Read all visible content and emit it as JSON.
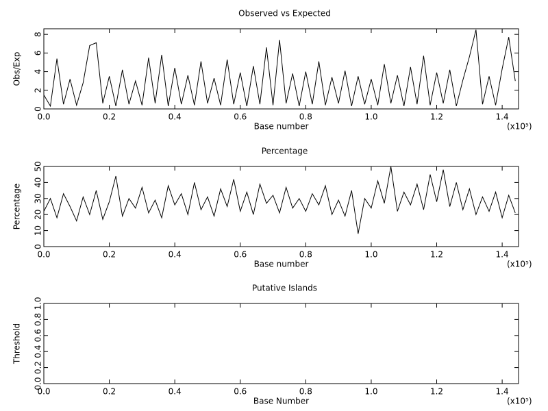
{
  "chart_data": [
    {
      "type": "line",
      "title": "Observed vs Expected",
      "x_label": "Base number",
      "y_label": "Obs/Exp",
      "x_multiplier": "(x10⁵)",
      "xlim": [
        0,
        1.45
      ],
      "xticks": [
        {
          "value": 0,
          "label": "0.0"
        },
        0.2,
        0.4,
        0.6,
        0.8,
        {
          "value": 1,
          "label": "1.0"
        },
        1.2,
        1.4
      ],
      "ylim": [
        0,
        8.6
      ],
      "yticks": [
        0,
        2,
        4,
        6,
        8
      ],
      "x": [
        0,
        0.02,
        0.04,
        0.06,
        0.08,
        0.1,
        0.12,
        0.14,
        0.16,
        0.18,
        0.2,
        0.22,
        0.24,
        0.26,
        0.28,
        0.3,
        0.32,
        0.34,
        0.36,
        0.38,
        0.4,
        0.42,
        0.44,
        0.46,
        0.48,
        0.5,
        0.52,
        0.54,
        0.56,
        0.58,
        0.6,
        0.62,
        0.64,
        0.66,
        0.68,
        0.7,
        0.72,
        0.74,
        0.76,
        0.78,
        0.8,
        0.82,
        0.84,
        0.86,
        0.88,
        0.9,
        0.92,
        0.94,
        0.96,
        0.98,
        1,
        1.02,
        1.04,
        1.06,
        1.08,
        1.1,
        1.12,
        1.14,
        1.16,
        1.18,
        1.2,
        1.22,
        1.24,
        1.26,
        1.28,
        1.3,
        1.32,
        1.34,
        1.36,
        1.38,
        1.4,
        1.42,
        1.44
      ],
      "series": [
        {
          "color": "#000000",
          "values": [
            1.5,
            0.3,
            5.4,
            0.5,
            3.2,
            0.4,
            2.8,
            6.8,
            7.1,
            0.6,
            3.5,
            0.3,
            4.2,
            0.5,
            3.0,
            0.4,
            5.5,
            0.6,
            5.8,
            0.3,
            4.4,
            0.5,
            3.6,
            0.4,
            5.1,
            0.6,
            3.3,
            0.4,
            5.3,
            0.5,
            3.9,
            0.3,
            4.6,
            0.5,
            6.6,
            0.4,
            7.4,
            0.6,
            3.8,
            0.3,
            4.0,
            0.5,
            5.1,
            0.4,
            3.4,
            0.6,
            4.1,
            0.3,
            3.5,
            0.5,
            3.2,
            0.4,
            4.8,
            0.6,
            3.6,
            0.3,
            4.5,
            0.5,
            5.7,
            0.4,
            3.9,
            0.6,
            4.2,
            0.3,
            3.1,
            5.6,
            8.5,
            0.5,
            3.5,
            0.4,
            4.3,
            7.7,
            3.0
          ]
        }
      ]
    },
    {
      "type": "line",
      "title": "Percentage",
      "x_label": "Base number",
      "y_label": "Percentage",
      "x_multiplier": "(x10⁵)",
      "xlim": [
        0,
        1.45
      ],
      "xticks": [
        {
          "value": 0,
          "label": "0.0"
        },
        0.2,
        0.4,
        0.6,
        0.8,
        {
          "value": 1,
          "label": "1.0"
        },
        1.2,
        1.4
      ],
      "ylim": [
        0,
        50
      ],
      "yticks": [
        0,
        10,
        20,
        30,
        40,
        50
      ],
      "x": [
        0,
        0.02,
        0.04,
        0.06,
        0.08,
        0.1,
        0.12,
        0.14,
        0.16,
        0.18,
        0.2,
        0.22,
        0.24,
        0.26,
        0.28,
        0.3,
        0.32,
        0.34,
        0.36,
        0.38,
        0.4,
        0.42,
        0.44,
        0.46,
        0.48,
        0.5,
        0.52,
        0.54,
        0.56,
        0.58,
        0.6,
        0.62,
        0.64,
        0.66,
        0.68,
        0.7,
        0.72,
        0.74,
        0.76,
        0.78,
        0.8,
        0.82,
        0.84,
        0.86,
        0.88,
        0.9,
        0.92,
        0.94,
        0.96,
        0.98,
        1,
        1.02,
        1.04,
        1.06,
        1.08,
        1.1,
        1.12,
        1.14,
        1.16,
        1.18,
        1.2,
        1.22,
        1.24,
        1.26,
        1.28,
        1.3,
        1.32,
        1.34,
        1.36,
        1.38,
        1.4,
        1.42,
        1.44
      ],
      "series": [
        {
          "color": "#000000",
          "values": [
            22,
            30,
            18,
            33,
            25,
            16,
            31,
            20,
            35,
            17,
            28,
            44,
            19,
            30,
            24,
            37,
            21,
            29,
            18,
            38,
            26,
            33,
            20,
            40,
            23,
            31,
            19,
            36,
            25,
            42,
            22,
            34,
            20,
            39,
            27,
            32,
            21,
            37,
            24,
            30,
            22,
            33,
            26,
            38,
            20,
            29,
            19,
            35,
            8,
            30,
            24,
            41,
            27,
            50,
            22,
            34,
            26,
            39,
            23,
            45,
            28,
            48,
            25,
            40,
            23,
            36,
            20,
            31,
            22,
            34,
            18,
            32,
            21
          ]
        }
      ]
    },
    {
      "type": "line",
      "title": "Putative Islands",
      "x_label": "Base Number",
      "y_label": "Threshold",
      "x_multiplier": "(x10⁵)",
      "xlim": [
        0,
        1.45
      ],
      "xticks": [
        {
          "value": 0,
          "label": "0.0"
        },
        0.2,
        0.4,
        0.6,
        0.8,
        {
          "value": 1,
          "label": "1.0"
        },
        1.2,
        1.4
      ],
      "ylim": [
        0,
        1
      ],
      "yticks": [
        {
          "value": 0,
          "label": "0.0"
        },
        0.2,
        0.4,
        0.6,
        0.8,
        {
          "value": 1,
          "label": "1.0"
        }
      ]
    }
  ]
}
